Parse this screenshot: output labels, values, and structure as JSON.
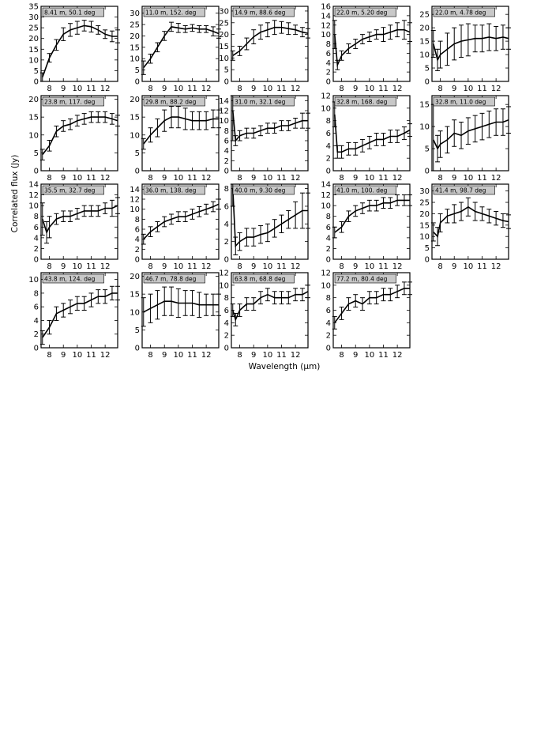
{
  "figure": {
    "ylabel": "Correlated flux (Jy)",
    "xlabel": "Wavelength (μm)"
  },
  "chart_data": [
    {
      "type": "line",
      "title": "8.41 m, 50.1 deg",
      "ylim": [
        0,
        35
      ],
      "yticks": [
        0,
        5,
        10,
        15,
        20,
        25,
        30,
        35
      ],
      "xlim": [
        7.4,
        12.9
      ],
      "xticks": [
        8,
        9,
        10,
        11,
        12
      ],
      "x": [
        7.5,
        8.0,
        8.5,
        9.0,
        9.5,
        10.0,
        10.5,
        11.0,
        11.5,
        12.0,
        12.5,
        12.9
      ],
      "y": [
        2,
        11,
        17,
        22,
        24,
        25,
        26,
        25.5,
        24,
        22,
        21,
        21
      ],
      "err": [
        2,
        2,
        2.5,
        3,
        3,
        3,
        2.5,
        2.5,
        2,
        2,
        2.5,
        3
      ]
    },
    {
      "type": "line",
      "title": "11.0 m, 152. deg",
      "ylim": [
        0,
        33
      ],
      "yticks": [
        0,
        5,
        10,
        15,
        20,
        25,
        30
      ],
      "xlim": [
        7.4,
        12.9
      ],
      "xticks": [
        8,
        9,
        10,
        11,
        12
      ],
      "x": [
        7.5,
        8.0,
        8.5,
        9.0,
        9.5,
        10.0,
        10.5,
        11.0,
        11.5,
        12.0,
        12.5,
        12.9
      ],
      "y": [
        6,
        10,
        15,
        20,
        24,
        23.5,
        23,
        23.5,
        23,
        23,
        22,
        21
      ],
      "err": [
        3,
        2,
        2,
        2,
        2,
        2,
        1.5,
        1.5,
        1.5,
        1.5,
        2,
        2
      ]
    },
    {
      "type": "line",
      "title": "14.9 m, 88.6 deg",
      "ylim": [
        0,
        32
      ],
      "yticks": [
        0,
        5,
        10,
        15,
        20,
        25,
        30
      ],
      "xlim": [
        7.4,
        12.9
      ],
      "xticks": [
        8,
        9,
        10,
        11,
        12
      ],
      "x": [
        7.5,
        8.0,
        8.5,
        9.0,
        9.5,
        10.0,
        10.5,
        11.0,
        11.5,
        12.0,
        12.5,
        12.9
      ],
      "y": [
        11,
        13,
        16,
        19,
        21,
        22,
        23,
        23,
        22.5,
        22,
        21,
        20.5
      ],
      "err": [
        2,
        2,
        2.5,
        3,
        3,
        3,
        3,
        2.5,
        2.5,
        2,
        2,
        2
      ]
    },
    {
      "type": "line",
      "title": "22.0 m, 5.20 deg",
      "ylim": [
        0,
        16
      ],
      "yticks": [
        0,
        2,
        4,
        6,
        8,
        10,
        12,
        14,
        16
      ],
      "xlim": [
        7.4,
        12.9
      ],
      "xticks": [
        8,
        9,
        10,
        11,
        12
      ],
      "x": [
        7.5,
        7.7,
        8.0,
        8.5,
        9.0,
        9.5,
        10.0,
        10.5,
        11.0,
        11.5,
        12.0,
        12.5,
        12.9
      ],
      "y": [
        10,
        3.5,
        5.5,
        7,
        8,
        9,
        9.5,
        10,
        10,
        10.5,
        11,
        11,
        10.5
      ],
      "err": [
        3,
        1,
        1,
        1,
        1,
        1,
        1,
        1,
        1.5,
        1.5,
        1.5,
        2,
        2
      ]
    },
    {
      "type": "line",
      "title": "22.0 m, 4.78 deg",
      "ylim": [
        0,
        28
      ],
      "yticks": [
        0,
        5,
        10,
        15,
        20,
        25
      ],
      "xlim": [
        7.4,
        12.9
      ],
      "xticks": [
        8,
        9,
        10,
        11,
        12
      ],
      "x": [
        7.5,
        7.8,
        8.0,
        8.5,
        9.0,
        9.5,
        10.0,
        10.5,
        11.0,
        11.5,
        12.0,
        12.5,
        12.9
      ],
      "y": [
        14,
        8,
        10,
        12,
        14,
        15,
        15.5,
        16,
        16,
        16.5,
        16,
        16.5,
        16
      ],
      "err": [
        5,
        4,
        5,
        6,
        6,
        6,
        6,
        5,
        5,
        5,
        4.5,
        4.5,
        4
      ]
    },
    {
      "type": "line",
      "title": "23.8 m, 117. deg",
      "ylim": [
        0,
        21
      ],
      "yticks": [
        0,
        5,
        10,
        15,
        20
      ],
      "xlim": [
        7.4,
        12.9
      ],
      "xticks": [
        8,
        9,
        10,
        11,
        12
      ],
      "x": [
        7.5,
        8.0,
        8.5,
        9.0,
        9.5,
        10.0,
        10.5,
        11.0,
        11.5,
        12.0,
        12.5,
        12.9
      ],
      "y": [
        4.5,
        7,
        11,
        12.5,
        13,
        14,
        14.5,
        15,
        15,
        15,
        14.5,
        14
      ],
      "err": [
        1.5,
        1.5,
        1.5,
        1.5,
        1.5,
        1.5,
        1.5,
        1.5,
        1.5,
        1.5,
        1.5,
        1.5
      ]
    },
    {
      "type": "line",
      "title": "29.8 m, 88.2 deg",
      "ylim": [
        0,
        21
      ],
      "yticks": [
        0,
        5,
        10,
        15,
        20
      ],
      "xlim": [
        7.4,
        12.9
      ],
      "xticks": [
        8,
        9,
        10,
        11,
        12
      ],
      "x": [
        7.5,
        8.0,
        8.5,
        9.0,
        9.5,
        10.0,
        10.5,
        11.0,
        11.5,
        12.0,
        12.5,
        12.9
      ],
      "y": [
        7.5,
        10,
        12,
        14,
        15,
        15,
        14.5,
        14,
        14,
        14,
        14.5,
        14.5
      ],
      "err": [
        1.5,
        2,
        2.5,
        3,
        3,
        3,
        3,
        2.5,
        2.5,
        2.5,
        2.5,
        2.5
      ]
    },
    {
      "type": "line",
      "title": "31.0 m, 32.1 deg",
      "ylim": [
        0,
        15
      ],
      "yticks": [
        0,
        2,
        4,
        6,
        8,
        10,
        12,
        14
      ],
      "xlim": [
        7.4,
        12.9
      ],
      "xticks": [
        8,
        9,
        10,
        11,
        12
      ],
      "x": [
        7.5,
        7.7,
        8.0,
        8.5,
        9.0,
        9.5,
        10.0,
        10.5,
        11.0,
        11.5,
        12.0,
        12.5,
        12.9
      ],
      "y": [
        12,
        6,
        7,
        7.5,
        7.5,
        8,
        8.5,
        8.5,
        9,
        9,
        9.5,
        10,
        10
      ],
      "err": [
        6,
        1,
        1,
        1,
        1,
        1,
        1,
        1,
        1,
        1,
        1,
        1.5,
        1.5
      ]
    },
    {
      "type": "line",
      "title": "32.8 m, 168. deg",
      "ylim": [
        0,
        12
      ],
      "yticks": [
        0,
        2,
        4,
        6,
        8,
        10,
        12
      ],
      "xlim": [
        7.4,
        12.9
      ],
      "xticks": [
        8,
        9,
        10,
        11,
        12
      ],
      "x": [
        7.5,
        7.7,
        8.0,
        8.5,
        9.0,
        9.5,
        10.0,
        10.5,
        11.0,
        11.5,
        12.0,
        12.5,
        12.9
      ],
      "y": [
        9,
        3,
        3,
        3.5,
        3.5,
        4,
        4.5,
        5,
        5,
        5.5,
        5.5,
        6,
        6.5
      ],
      "err": [
        2,
        1,
        1,
        1,
        1,
        1,
        1,
        1,
        1,
        1,
        1,
        1,
        1
      ]
    },
    {
      "type": "line",
      "title": "32.8 m, 11.0 deg",
      "ylim": [
        0,
        17
      ],
      "yticks": [
        0,
        5,
        10,
        15
      ],
      "xlim": [
        7.4,
        12.9
      ],
      "xticks": [
        8,
        9,
        10,
        11,
        12
      ],
      "x": [
        7.5,
        7.8,
        8.0,
        8.5,
        9.0,
        9.5,
        10.0,
        10.5,
        11.0,
        11.5,
        12.0,
        12.5,
        12.9
      ],
      "y": [
        7,
        5,
        6,
        7,
        8.5,
        8,
        9,
        9.5,
        10,
        10.5,
        11,
        11,
        11.5
      ],
      "err": [
        8,
        3,
        3,
        3,
        3,
        3,
        3,
        3,
        3,
        3,
        3,
        3,
        3
      ]
    },
    {
      "type": "line",
      "title": "35.5 m, 32.7 deg",
      "ylim": [
        0,
        14
      ],
      "yticks": [
        0,
        2,
        4,
        6,
        8,
        10,
        12,
        14
      ],
      "xlim": [
        7.4,
        12.9
      ],
      "xticks": [
        8,
        9,
        10,
        11,
        12
      ],
      "x": [
        7.5,
        7.8,
        8.0,
        8.5,
        9.0,
        9.5,
        10.0,
        10.5,
        11.0,
        11.5,
        12.0,
        12.5,
        12.9
      ],
      "y": [
        7.5,
        5,
        6,
        7.5,
        8,
        8,
        8.5,
        9,
        9,
        9,
        9.5,
        9.5,
        10
      ],
      "err": [
        3,
        2,
        2,
        1,
        1,
        1,
        1,
        1,
        1,
        1,
        1,
        1.5,
        1.5
      ]
    },
    {
      "type": "line",
      "title": "36.0 m, 138. deg",
      "ylim": [
        0,
        15
      ],
      "yticks": [
        0,
        2,
        4,
        6,
        8,
        10,
        12,
        14
      ],
      "xlim": [
        7.4,
        12.9
      ],
      "xticks": [
        8,
        9,
        10,
        11,
        12
      ],
      "x": [
        7.5,
        8.0,
        8.5,
        9.0,
        9.5,
        10.0,
        10.5,
        11.0,
        11.5,
        12.0,
        12.5,
        12.9
      ],
      "y": [
        4,
        5.5,
        6.5,
        7.5,
        8,
        8.5,
        8.5,
        9,
        9.5,
        10,
        10.5,
        11
      ],
      "err": [
        1,
        1,
        1,
        1,
        1,
        1,
        1,
        1,
        1,
        1,
        1,
        1
      ]
    },
    {
      "type": "line",
      "title": "40.0 m, 9.30 deg",
      "ylim": [
        0,
        8.5
      ],
      "yticks": [
        0,
        2,
        4,
        6,
        8
      ],
      "xlim": [
        7.4,
        12.9
      ],
      "xticks": [
        8,
        9,
        10,
        11,
        12
      ],
      "x": [
        7.5,
        7.7,
        8.0,
        8.5,
        9.0,
        9.5,
        10.0,
        10.5,
        11.0,
        11.5,
        12.0,
        12.5,
        12.9
      ],
      "y": [
        8,
        1.5,
        2,
        2.5,
        2.5,
        2.8,
        3,
        3.5,
        4,
        4.5,
        5,
        5.5,
        5.5
      ],
      "err": [
        2,
        1,
        1,
        1,
        1,
        1,
        1,
        1,
        1,
        1,
        1.5,
        2,
        2
      ]
    },
    {
      "type": "line",
      "title": "41.0 m, 100. deg",
      "ylim": [
        0,
        14
      ],
      "yticks": [
        0,
        2,
        4,
        6,
        8,
        10,
        12,
        14
      ],
      "xlim": [
        7.4,
        12.9
      ],
      "xticks": [
        8,
        9,
        10,
        11,
        12
      ],
      "x": [
        7.5,
        8.0,
        8.5,
        9.0,
        9.5,
        10.0,
        10.5,
        11.0,
        11.5,
        12.0,
        12.5,
        12.9
      ],
      "y": [
        5,
        6,
        8,
        9,
        9.5,
        10,
        10,
        10.5,
        10.5,
        11,
        11,
        11
      ],
      "err": [
        1,
        1,
        1,
        1,
        1,
        1,
        1,
        1,
        1,
        1,
        1,
        1
      ]
    },
    {
      "type": "line",
      "title": "41.4 m, 98.7 deg",
      "ylim": [
        0,
        33
      ],
      "yticks": [
        0,
        5,
        10,
        15,
        20,
        25,
        30
      ],
      "xlim": [
        7.4,
        12.9
      ],
      "xticks": [
        8,
        9,
        10,
        11,
        12
      ],
      "x": [
        7.5,
        7.8,
        8.0,
        8.5,
        9.0,
        9.5,
        10.0,
        10.5,
        11.0,
        11.5,
        12.0,
        12.5,
        12.9
      ],
      "y": [
        12,
        10,
        16,
        19,
        20,
        21,
        23,
        21,
        20,
        19,
        18,
        17,
        16.5
      ],
      "err": [
        4,
        4,
        4,
        3,
        4,
        4,
        4,
        4,
        3,
        3,
        3,
        3,
        3
      ]
    },
    {
      "type": "line",
      "title": "43.8 m, 124. deg",
      "ylim": [
        0,
        11
      ],
      "yticks": [
        0,
        2,
        4,
        6,
        8,
        10
      ],
      "xlim": [
        7.4,
        12.9
      ],
      "xticks": [
        8,
        9,
        10,
        11,
        12
      ],
      "x": [
        7.5,
        8.0,
        8.5,
        9.0,
        9.5,
        10.0,
        10.5,
        11.0,
        11.5,
        12.0,
        12.5,
        12.9
      ],
      "y": [
        1.5,
        3,
        5,
        5.5,
        6,
        6.5,
        6.5,
        7,
        7.5,
        7.5,
        8,
        8
      ],
      "err": [
        1,
        1,
        1,
        1,
        1,
        1,
        1,
        1,
        1,
        1,
        1,
        1
      ]
    },
    {
      "type": "line",
      "title": "46.7 m, 78.8 deg",
      "ylim": [
        0,
        21
      ],
      "yticks": [
        0,
        5,
        10,
        15,
        20
      ],
      "xlim": [
        7.4,
        12.9
      ],
      "xticks": [
        8,
        9,
        10,
        11,
        12
      ],
      "x": [
        7.5,
        8.0,
        8.5,
        9.0,
        9.5,
        10.0,
        10.5,
        11.0,
        11.5,
        12.0,
        12.5,
        12.9
      ],
      "y": [
        10,
        11,
        12,
        13,
        13,
        12.5,
        12.5,
        12.5,
        12,
        12,
        12,
        12
      ],
      "err": [
        4,
        4,
        4,
        4,
        4,
        4,
        3.5,
        3.5,
        3.5,
        3,
        3,
        3
      ]
    },
    {
      "type": "line",
      "title": "63.8 m, 68.8 deg",
      "ylim": [
        0,
        12
      ],
      "yticks": [
        0,
        2,
        4,
        6,
        8,
        10,
        12
      ],
      "xlim": [
        7.4,
        12.9
      ],
      "xticks": [
        8,
        9,
        10,
        11,
        12
      ],
      "x": [
        7.5,
        7.7,
        8.0,
        8.5,
        9.0,
        9.5,
        10.0,
        10.5,
        11.0,
        11.5,
        12.0,
        12.5,
        12.9
      ],
      "y": [
        6,
        4.5,
        6,
        7,
        7,
        8,
        8.5,
        8,
        8,
        8,
        8.5,
        8.5,
        9
      ],
      "err": [
        1,
        1,
        1,
        1,
        1,
        1,
        1,
        1,
        1,
        1,
        1,
        1,
        1
      ]
    },
    {
      "type": "line",
      "title": "77.2 m, 80.4 deg",
      "ylim": [
        0,
        12
      ],
      "yticks": [
        0,
        2,
        4,
        6,
        8,
        10,
        12
      ],
      "xlim": [
        7.4,
        12.9
      ],
      "xticks": [
        8,
        9,
        10,
        11,
        12
      ],
      "x": [
        7.5,
        8.0,
        8.5,
        9.0,
        9.5,
        10.0,
        10.5,
        11.0,
        11.5,
        12.0,
        12.5,
        12.9
      ],
      "y": [
        4,
        5.5,
        7,
        7.5,
        7,
        8,
        8,
        8.5,
        8.5,
        9,
        9.5,
        9.5
      ],
      "err": [
        1,
        1,
        1,
        1,
        1,
        1,
        1,
        1,
        1,
        1,
        1,
        1
      ]
    }
  ]
}
